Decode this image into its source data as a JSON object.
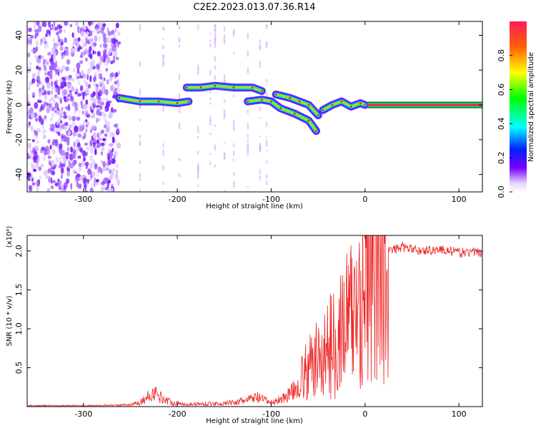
{
  "title": "C2E2.2023.013.07.36.R14",
  "chart_data": [
    {
      "type": "heatmap",
      "xlabel": "Height of straight line (km)",
      "ylabel": "Frequency (Hz)",
      "xlim": [
        -360,
        125
      ],
      "ylim": [
        -50,
        48
      ],
      "xticks": [
        -300,
        -200,
        -100,
        0,
        100
      ],
      "yticks": [
        -40,
        -20,
        0,
        20,
        40
      ],
      "colorbar": {
        "label": "Normalized spectral amplitude",
        "range": [
          0,
          1
        ],
        "ticks": [
          0.0,
          0.2,
          0.4,
          0.6,
          0.8
        ]
      },
      "noise_region_x": [
        -360,
        -262
      ],
      "features": [
        {
          "name": "trace-low-left",
          "points": [
            [
              -262,
              4
            ],
            [
              -240,
              2
            ],
            [
              -220,
              2
            ],
            [
              -200,
              1
            ],
            [
              -188,
              2
            ]
          ]
        },
        {
          "name": "trace-upper",
          "points": [
            [
              -190,
              10
            ],
            [
              -175,
              10
            ],
            [
              -160,
              11
            ],
            [
              -140,
              10
            ],
            [
              -120,
              10
            ],
            [
              -110,
              8
            ]
          ]
        },
        {
          "name": "trace-descending",
          "points": [
            [
              -125,
              2
            ],
            [
              -110,
              3
            ],
            [
              -100,
              2
            ],
            [
              -90,
              -2
            ],
            [
              -75,
              -5
            ],
            [
              -60,
              -9
            ],
            [
              -52,
              -15
            ]
          ]
        },
        {
          "name": "trace-branch",
          "points": [
            [
              -95,
              6
            ],
            [
              -80,
              4
            ],
            [
              -70,
              2
            ],
            [
              -60,
              0
            ],
            [
              -50,
              -6
            ]
          ]
        },
        {
          "name": "trace-right",
          "points": [
            [
              -45,
              -3
            ],
            [
              -35,
              0
            ],
            [
              -25,
              2
            ],
            [
              -15,
              -1
            ],
            [
              -5,
              1
            ],
            [
              0,
              0
            ]
          ]
        },
        {
          "name": "carrier-line",
          "points": [
            [
              3,
              0
            ],
            [
              125,
              0
            ]
          ]
        }
      ]
    },
    {
      "type": "line",
      "xlabel": "Height of straight line (km)",
      "ylabel": "SNR (10 * v/v)",
      "y_scale_label": "(x10⁴)",
      "xlim": [
        -360,
        125
      ],
      "ylim": [
        0,
        2.2
      ],
      "xticks": [
        -300,
        -200,
        -100,
        0,
        100
      ],
      "yticks": [
        0.5,
        1.0,
        1.5,
        2.0
      ],
      "ytick_labels": [
        "0.5",
        "1.0",
        "1.5",
        "2.0"
      ],
      "series": [
        {
          "color": "#ee2222",
          "x": [
            -360,
            -300,
            -250,
            -240,
            -232,
            -225,
            -215,
            -205,
            -190,
            -150,
            -130,
            -115,
            -100,
            -85,
            -75,
            -65,
            -55,
            -45,
            -38,
            -30,
            -22,
            -12,
            -5,
            0,
            10,
            20,
            25,
            40,
            60,
            80,
            100,
            125
          ],
          "y": [
            0.01,
            0.01,
            0.02,
            0.05,
            0.12,
            0.18,
            0.1,
            0.05,
            0.03,
            0.04,
            0.07,
            0.12,
            0.05,
            0.12,
            0.22,
            0.4,
            0.55,
            0.65,
            0.75,
            0.9,
            1.05,
            1.2,
            1.4,
            1.55,
            1.75,
            1.88,
            2.0,
            2.05,
            2.0,
            2.02,
            1.98,
            1.98
          ]
        }
      ]
    }
  ]
}
